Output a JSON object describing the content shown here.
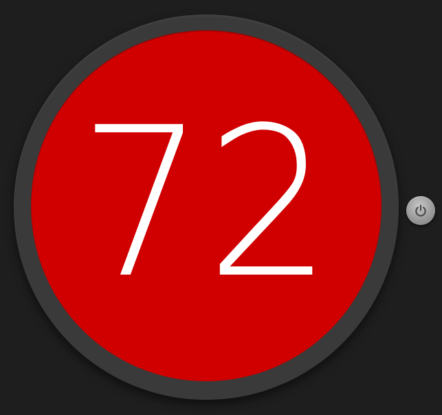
{
  "thermostat": {
    "temperature": "72",
    "face_color": "#d10000",
    "ring_color": "#3a3a3a",
    "background_color": "#1e1e1e"
  },
  "power_button": {
    "icon": "power-icon"
  }
}
